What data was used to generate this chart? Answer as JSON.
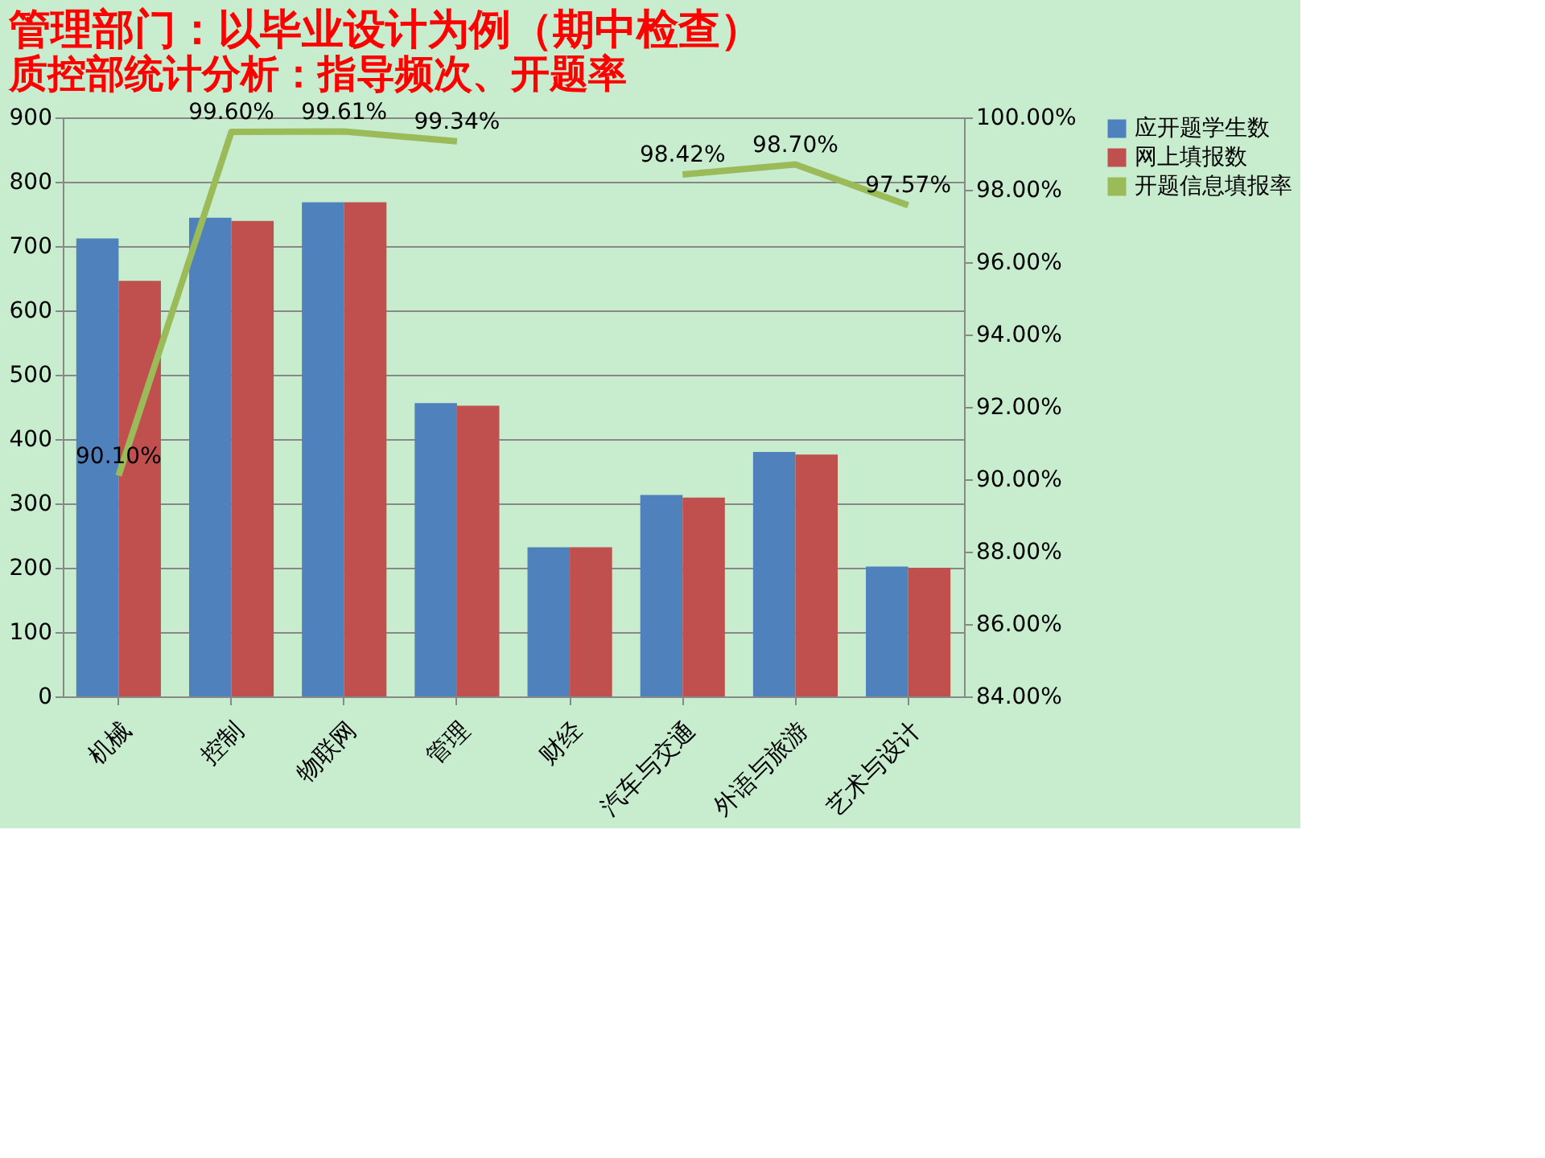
{
  "chart_data": {
    "type": "bar",
    "title": "管理部门：以毕业设计为例（期中检查）",
    "subtitle": "质控部统计分析：指导频次、开题率",
    "categories": [
      "机械",
      "控制",
      "物联网",
      "管理",
      "财经",
      "汽车与交通",
      "外语与旅游",
      "艺术与设计"
    ],
    "series": [
      {
        "name": "应开题学生数",
        "color": "#4f81bd",
        "values": [
          712,
          744,
          768,
          456,
          232,
          313,
          380,
          202
        ]
      },
      {
        "name": "网上填报数",
        "color": "#c0504d",
        "values": [
          646,
          739,
          768,
          452,
          232,
          309,
          376,
          200
        ]
      },
      {
        "name": "开题信息填报率",
        "type": "line",
        "axis": "y2",
        "color": "#9bbb59",
        "values": [
          90.1,
          99.6,
          99.61,
          99.34,
          null,
          98.42,
          98.7,
          97.57
        ],
        "value_labels": [
          "90.10%",
          "99.60%",
          "99.61%",
          "99.34%",
          null,
          "98.42%",
          "98.70%",
          "97.57%"
        ]
      }
    ],
    "ylim": [
      0,
      900
    ],
    "yticks": [
      0,
      100,
      200,
      300,
      400,
      500,
      600,
      700,
      800,
      900
    ],
    "y2lim": [
      84,
      100
    ],
    "y2ticks": [
      {
        "value": 84,
        "label": "84.00%"
      },
      {
        "value": 86,
        "label": "86.00%"
      },
      {
        "value": 88,
        "label": "88.00%"
      },
      {
        "value": 90,
        "label": "90.00%"
      },
      {
        "value": 92,
        "label": "92.00%"
      },
      {
        "value": 94,
        "label": "94.00%"
      },
      {
        "value": 96,
        "label": "96.00%"
      },
      {
        "value": 98,
        "label": "98.00%"
      },
      {
        "value": 100,
        "label": "100.00%"
      }
    ],
    "grid": "y",
    "legend": "right"
  }
}
